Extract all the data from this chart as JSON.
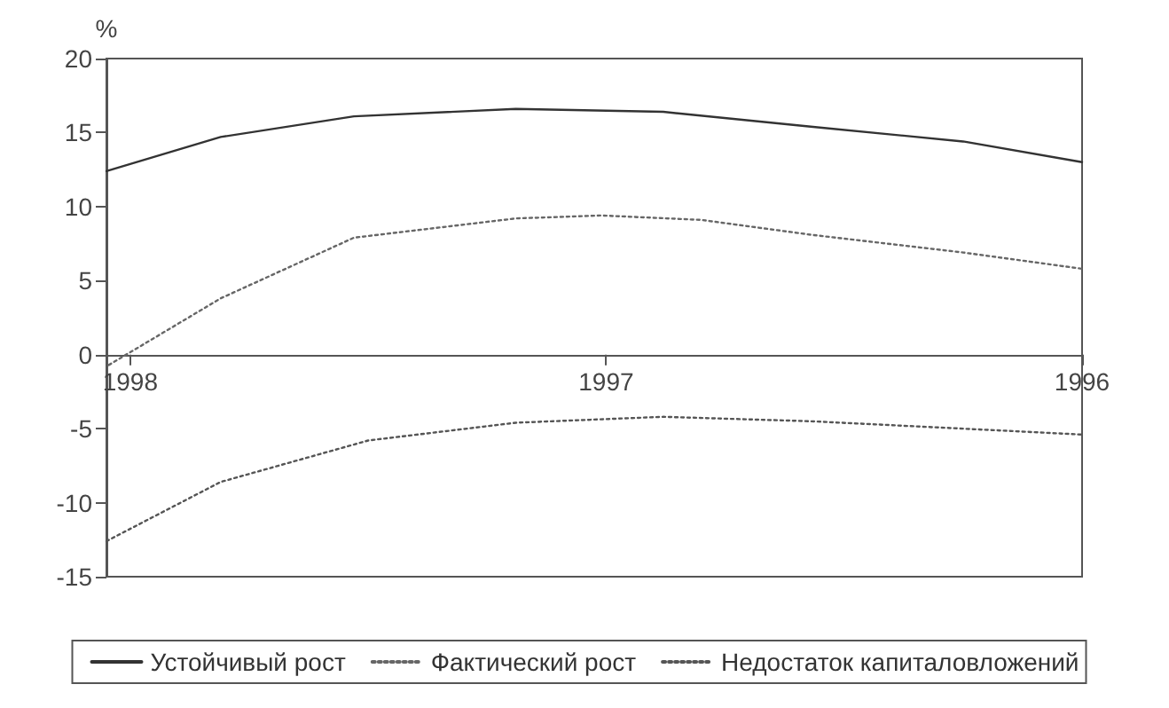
{
  "chart_data": {
    "type": "line",
    "ylabel": "%",
    "legend": "bottom",
    "marker": "none",
    "grid": false,
    "xlim": [
      1998.05,
      1996
    ],
    "xticks": [
      1998,
      1997,
      1996
    ],
    "ylim": [
      -15,
      20
    ],
    "yticks": [
      -15,
      -10,
      -5,
      0,
      5,
      10,
      15,
      20
    ],
    "series": [
      {
        "name": "Устойчивый рост",
        "color": "#333333",
        "line_style": "solid",
        "x": [
          1998.05,
          1997.81,
          1997.53,
          1997.19,
          1996.88,
          1996.57,
          1996.25,
          1996.0
        ],
        "values": [
          12.4,
          14.7,
          16.1,
          16.6,
          16.4,
          15.4,
          14.4,
          13.0
        ]
      },
      {
        "name": "Фактический рост",
        "color": "#666666",
        "line_style": "dotted",
        "x": [
          1998.045,
          1997.81,
          1997.53,
          1997.19,
          1997.01,
          1996.8,
          1996.57,
          1996.25,
          1996.0
        ],
        "values": [
          -0.7,
          3.8,
          7.9,
          9.2,
          9.4,
          9.1,
          8.1,
          6.9,
          5.8
        ]
      },
      {
        "name": "Недостаток капиталовложений",
        "color": "#555555",
        "line_style": "dotted",
        "x": [
          1998.05,
          1997.81,
          1997.5,
          1997.19,
          1996.88,
          1996.57,
          1996.25,
          1996.0
        ],
        "values": [
          -12.6,
          -8.6,
          -5.8,
          -4.6,
          -4.2,
          -4.5,
          -5.0,
          -5.4
        ]
      }
    ]
  }
}
